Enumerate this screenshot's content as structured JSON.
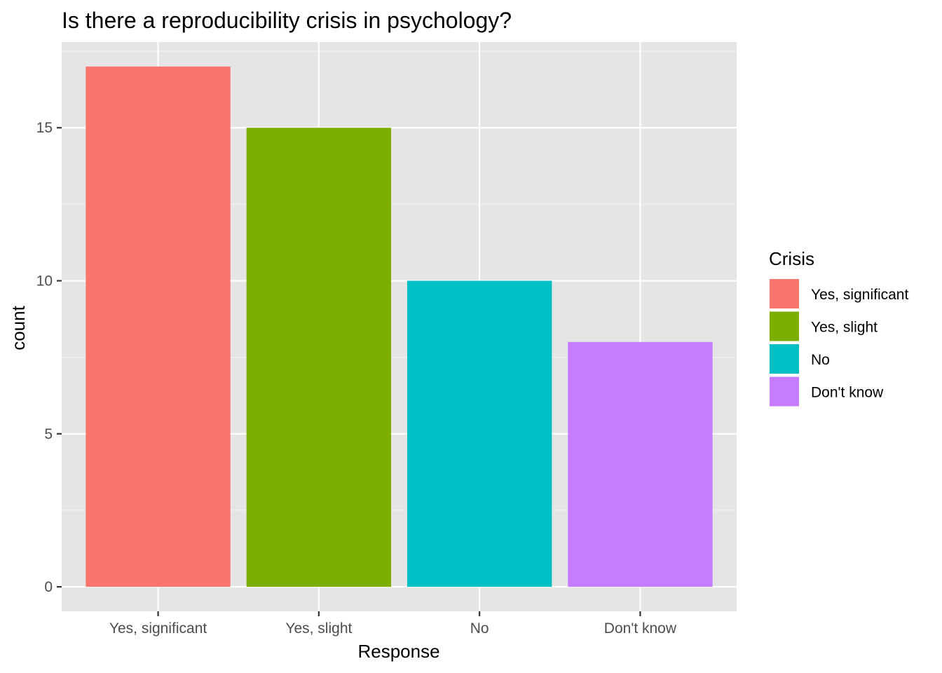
{
  "chart_data": {
    "type": "bar",
    "title": "Is there a reproducibility crisis in psychology?",
    "xlabel": "Response",
    "ylabel": "count",
    "categories": [
      "Yes, significant",
      "Yes, slight",
      "No",
      "Don't know"
    ],
    "values": [
      17,
      15,
      10,
      8
    ],
    "colors": [
      "#F8766D",
      "#7CAE00",
      "#00BFC4",
      "#C77CFF"
    ],
    "ylim": [
      -0.8,
      17.8
    ],
    "yticks": [
      0,
      5,
      10,
      15
    ],
    "yticks_minor": [
      2.5,
      7.5,
      12.5,
      17.5
    ],
    "grid": true,
    "panel_background": "#E5E5E5",
    "legend": {
      "title": "Crisis",
      "position": "right",
      "entries": [
        "Yes, significant",
        "Yes, slight",
        "No",
        "Don't know"
      ]
    }
  }
}
